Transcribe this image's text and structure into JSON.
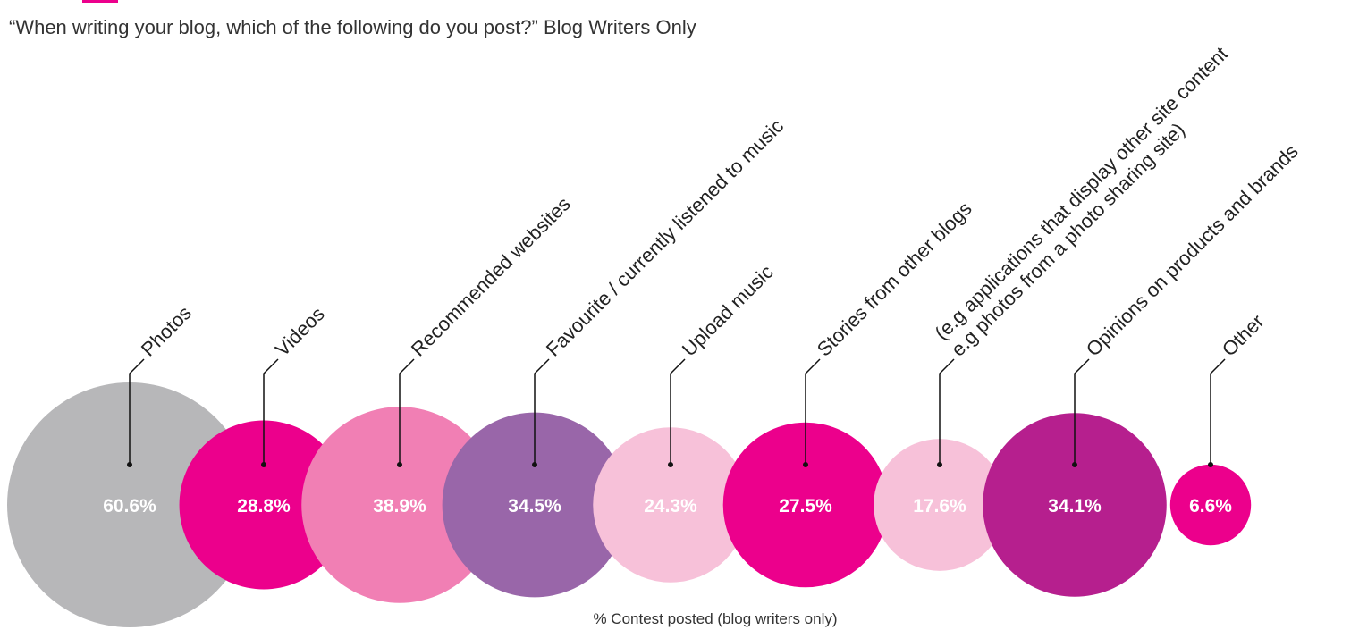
{
  "chart_data": {
    "type": "bubble",
    "subtitle": "“When writing your blog, which of the following do you post?” Blog Writers Only",
    "xlabel": "% Contest posted (blog writers only)",
    "unit": "%",
    "categories": [
      "Photos",
      "Videos",
      "Recommended websites",
      "Favourite / currently listened to music",
      "Upload music",
      "Stories from other blogs",
      "(e.g applications that display other site content e.g photos from a photo sharing site)",
      "Opinions on products and brands",
      "Other"
    ],
    "label_lines": [
      [
        "Photos"
      ],
      [
        "Videos"
      ],
      [
        "Recommended websites"
      ],
      [
        "Favourite / currently listened to music"
      ],
      [
        "Upload music"
      ],
      [
        "Stories from other blogs"
      ],
      [
        "(e.g applications that display other site content",
        "e.g photos from a photo sharing site)"
      ],
      [
        "Opinions on products and brands"
      ],
      [
        "Other"
      ]
    ],
    "values": [
      60.6,
      28.8,
      38.9,
      34.5,
      24.3,
      27.5,
      17.6,
      34.1,
      6.6
    ],
    "value_labels": [
      "60.6%",
      "28.8%",
      "38.9%",
      "34.5%",
      "24.3%",
      "27.5%",
      "17.6%",
      "34.1%",
      "6.6%"
    ],
    "colors": [
      "#b7b7b9",
      "#ec008c",
      "#f17fb4",
      "#9966a9",
      "#f7c1d9",
      "#ec008c",
      "#f7c1d9",
      "#b61f8e",
      "#ec008c"
    ],
    "value_label_colors": [
      "#ffffff",
      "#ffffff",
      "#ffffff",
      "#ffffff",
      "#ffffff",
      "#ffffff",
      "#ffffff",
      "#ffffff",
      "#ffffff"
    ],
    "grid": false,
    "legend": "none"
  }
}
